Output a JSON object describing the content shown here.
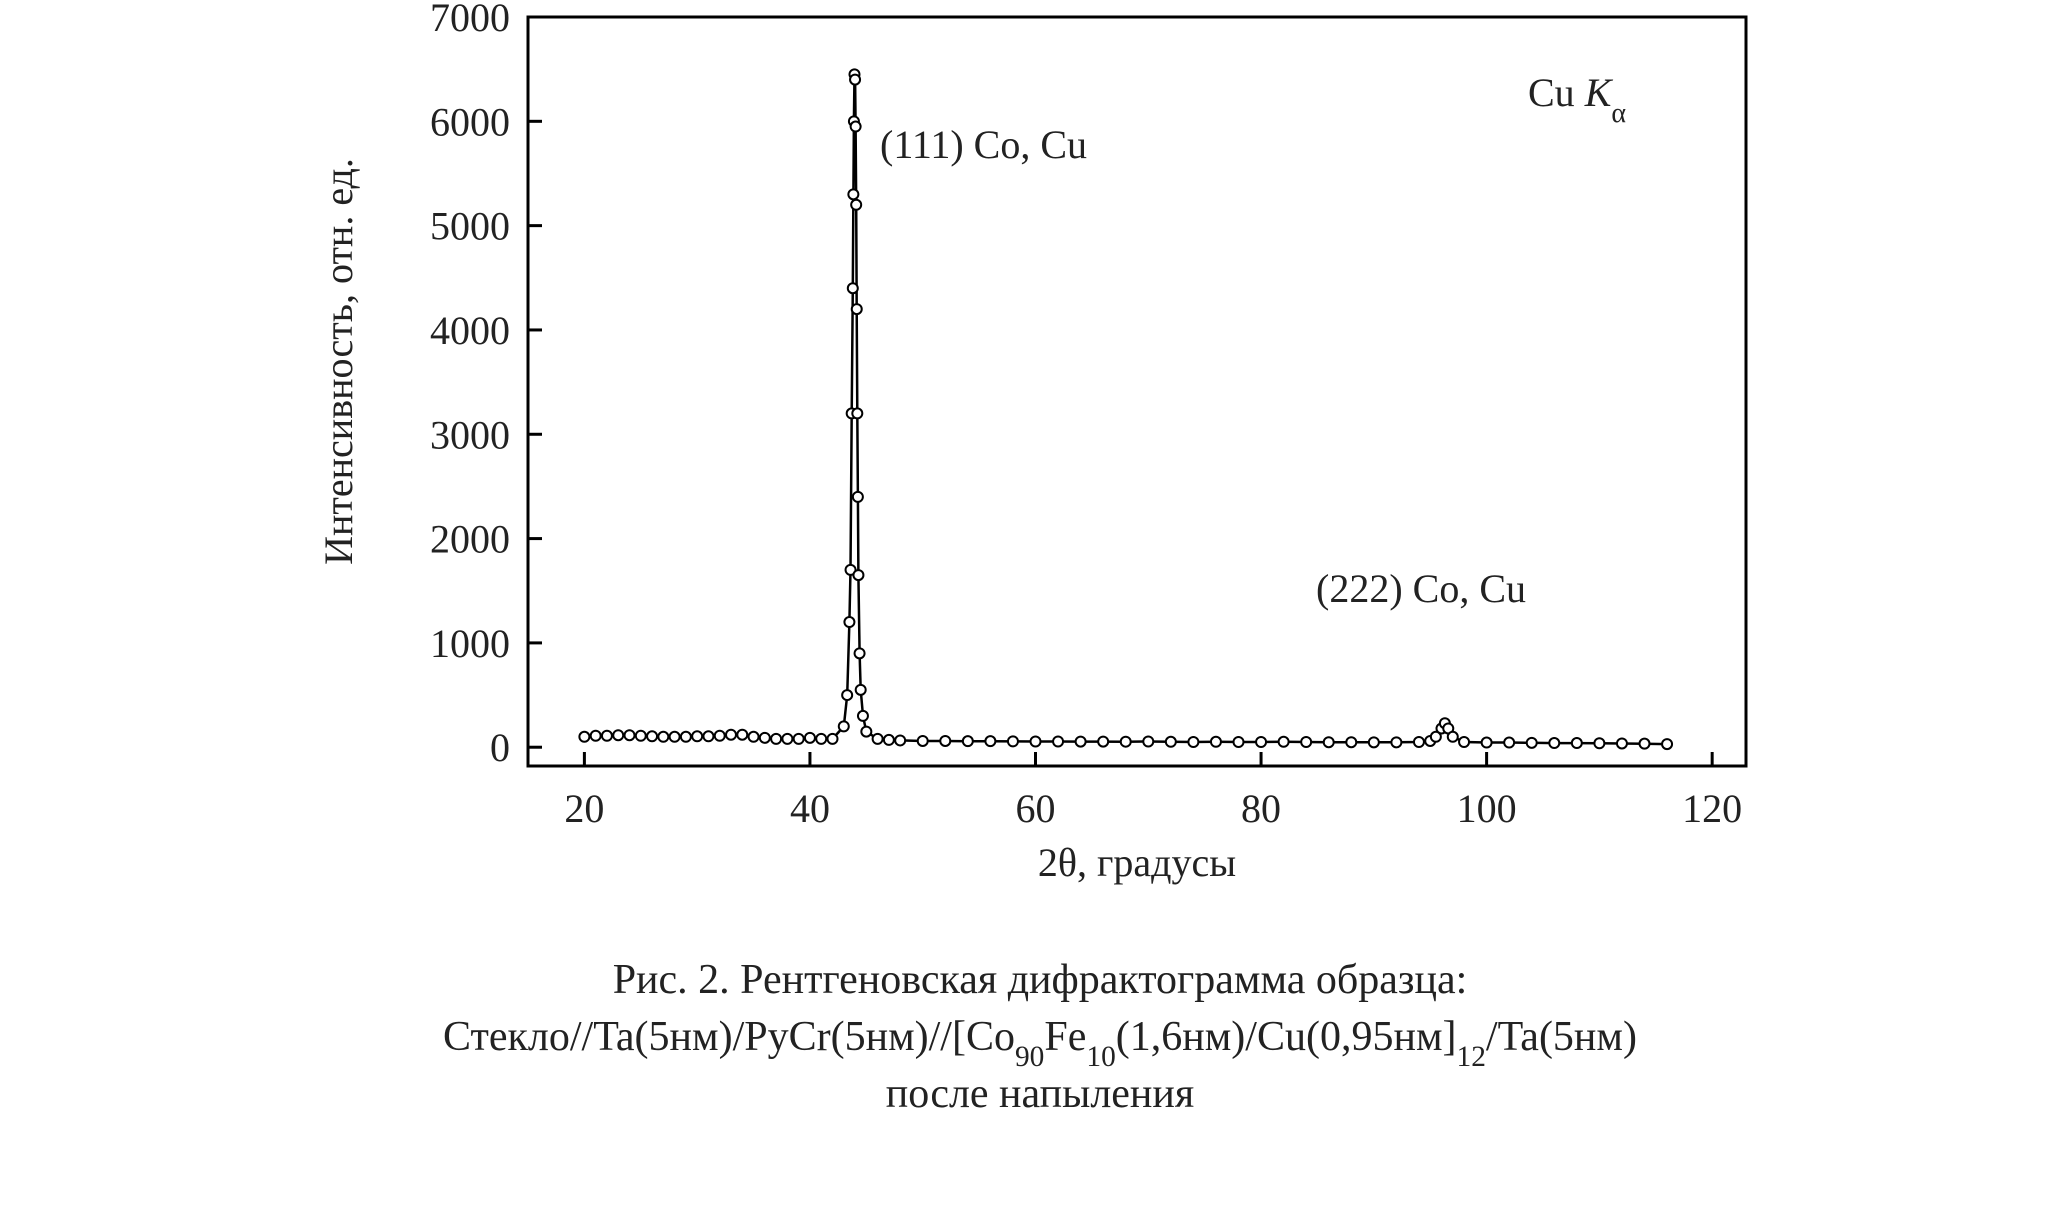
{
  "chart_data": {
    "type": "line",
    "ylabel": "Интенсивность, отн. ед.",
    "xlabel": "2θ, градусы",
    "annotations": [
      {
        "parts": [
          {
            "text": "(111) Co, Cu"
          }
        ]
      },
      {
        "parts": [
          {
            "text": "(222) Co, Cu"
          }
        ]
      },
      {
        "parts": [
          {
            "text": "Cu "
          },
          {
            "text": "K",
            "italic": true
          },
          {
            "text": "α",
            "subscript": true
          }
        ]
      }
    ],
    "caption": [
      [
        {
          "text": "Рис. 2. Рентгеновская дифрактограмма образца:"
        }
      ],
      [
        {
          "text": "Стекло//Ta(5нм)/PyCr(5нм)//[Co"
        },
        {
          "text": "90",
          "subscript": true
        },
        {
          "text": "Fe"
        },
        {
          "text": "10",
          "subscript": true
        },
        {
          "text": "(1,6нм)/Cu(0,95нм]"
        },
        {
          "text": "12",
          "subscript": true
        },
        {
          "text": "/Ta(5нм)"
        }
      ],
      [
        {
          "text": "после напыления"
        }
      ]
    ],
    "xlim": [
      15,
      123
    ],
    "ylim": [
      -180,
      7000
    ],
    "xticks": [
      20,
      40,
      60,
      80,
      100,
      120
    ],
    "yticks": [
      0,
      1000,
      2000,
      3000,
      4000,
      5000,
      6000,
      7000
    ],
    "color": "#000000",
    "x": [
      20,
      21,
      22,
      23,
      24,
      25,
      26,
      27,
      28,
      29,
      30,
      31,
      32,
      33,
      34,
      35,
      36,
      37,
      38,
      39,
      40,
      41,
      42,
      43,
      43.3,
      43.5,
      43.6,
      43.7,
      43.8,
      43.85,
      43.9,
      43.95,
      44.0,
      44.05,
      44.1,
      44.15,
      44.2,
      44.25,
      44.3,
      44.4,
      44.5,
      44.7,
      45,
      46,
      47,
      48,
      50,
      52,
      54,
      56,
      58,
      60,
      62,
      64,
      66,
      68,
      70,
      72,
      74,
      76,
      78,
      80,
      82,
      84,
      86,
      88,
      90,
      92,
      94,
      95,
      95.5,
      96,
      96.3,
      96.6,
      97,
      98,
      100,
      102,
      104,
      106,
      108,
      110,
      112,
      114,
      116
    ],
    "values": [
      100,
      110,
      110,
      115,
      115,
      110,
      105,
      100,
      100,
      100,
      105,
      105,
      110,
      120,
      120,
      100,
      90,
      80,
      80,
      80,
      90,
      80,
      80,
      200,
      500,
      1200,
      1700,
      3200,
      4400,
      5300,
      6000,
      6450,
      6400,
      5950,
      5200,
      4200,
      3200,
      2400,
      1650,
      900,
      550,
      300,
      150,
      80,
      70,
      65,
      60,
      60,
      58,
      58,
      56,
      55,
      55,
      54,
      54,
      53,
      55,
      52,
      50,
      52,
      50,
      50,
      52,
      50,
      48,
      48,
      47,
      47,
      50,
      60,
      100,
      180,
      230,
      180,
      100,
      50,
      45,
      45,
      42,
      40,
      40,
      38,
      36,
      34,
      30
    ]
  }
}
